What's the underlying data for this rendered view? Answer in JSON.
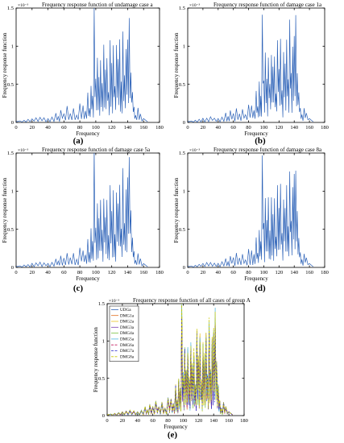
{
  "chart_data": [
    {
      "type": "line",
      "panel_label": "(a)",
      "title": "Frequency response function of undamage case a",
      "xlabel": "Frequency",
      "ylabel": "Frequency response function",
      "xlim": [
        0,
        180
      ],
      "ylim": [
        0,
        1.5
      ],
      "xticks": [
        "0",
        "20",
        "40",
        "60",
        "80",
        "100",
        "120",
        "140",
        "160",
        "180"
      ],
      "yticks": [
        "0",
        "0.5",
        "1",
        "1.5"
      ],
      "exponent": "×10⁻³",
      "color": "#2e63b8"
    },
    {
      "type": "line",
      "panel_label": "(b)",
      "title": "Frequency response function of damage case 1a",
      "xlabel": "Frequency",
      "ylabel": "Frequency response function",
      "xlim": [
        0,
        180
      ],
      "ylim": [
        0,
        1.5
      ],
      "xticks": [
        "0",
        "20",
        "40",
        "60",
        "80",
        "100",
        "120",
        "140",
        "160",
        "180"
      ],
      "yticks": [
        "0",
        "0.5",
        "1",
        "1.5"
      ],
      "exponent": "×10⁻³",
      "color": "#2e63b8"
    },
    {
      "type": "line",
      "panel_label": "(c)",
      "title": "Frequency response function of damage case 5a",
      "xlabel": "Frequency",
      "ylabel": "Frequency response function",
      "xlim": [
        0,
        180
      ],
      "ylim": [
        0,
        1.5
      ],
      "xticks": [
        "0",
        "20",
        "40",
        "60",
        "80",
        "100",
        "120",
        "140",
        "160",
        "180"
      ],
      "yticks": [
        "0",
        "0.5",
        "1",
        "1.5"
      ],
      "exponent": "×10⁻³",
      "color": "#2e63b8"
    },
    {
      "type": "line",
      "panel_label": "(d)",
      "title": "Frequency response function of damage case 8a",
      "xlabel": "Frequency",
      "ylabel": "Frequency response function",
      "xlim": [
        0,
        180
      ],
      "ylim": [
        0,
        1.5
      ],
      "xticks": [
        "0",
        "20",
        "40",
        "60",
        "80",
        "100",
        "120",
        "140",
        "160",
        "180"
      ],
      "yticks": [
        "0",
        "0.5",
        "1",
        "1.5"
      ],
      "exponent": "×10⁻³",
      "color": "#2e63b8"
    },
    {
      "type": "line",
      "panel_label": "(e)",
      "title": "Frequency response function of all cases of group A",
      "xlabel": "Frequency",
      "ylabel": "Frequency response function",
      "xlim": [
        0,
        180
      ],
      "ylim": [
        0,
        1.5
      ],
      "xticks": [
        "0",
        "20",
        "40",
        "60",
        "80",
        "100",
        "120",
        "140",
        "160",
        "180"
      ],
      "yticks": [
        "0",
        "0.5",
        "1",
        "1.5"
      ],
      "exponent": "×10⁻³",
      "legend_position": "top-left",
      "series": [
        {
          "name": "UDGa",
          "color": "#2e63b8",
          "dash": ""
        },
        {
          "name": "DMG1a",
          "color": "#e06c1a",
          "dash": ""
        },
        {
          "name": "DMG2a",
          "color": "#e8c21e",
          "dash": ""
        },
        {
          "name": "DMG3a",
          "color": "#7b3fb0",
          "dash": ""
        },
        {
          "name": "DMG4a",
          "color": "#7ac142",
          "dash": ""
        },
        {
          "name": "DMG5a",
          "color": "#4fb6e0",
          "dash": ""
        },
        {
          "name": "DMG6a",
          "color": "#c2185b",
          "dash": "3,1.5"
        },
        {
          "name": "DMG7a",
          "color": "#2323c8",
          "dash": "3,1.5"
        },
        {
          "name": "DMG8a",
          "color": "#c8c800",
          "dash": "3,1.5"
        }
      ]
    }
  ],
  "spectrum_peaks": [
    [
      5,
      0.02
    ],
    [
      10,
      0.03
    ],
    [
      15,
      0.04
    ],
    [
      20,
      0.05
    ],
    [
      25,
      0.06
    ],
    [
      30,
      0.07
    ],
    [
      35,
      0.06
    ],
    [
      40,
      0.05
    ],
    [
      45,
      0.07
    ],
    [
      50,
      0.12
    ],
    [
      53,
      0.08
    ],
    [
      56,
      0.15
    ],
    [
      60,
      0.12
    ],
    [
      64,
      0.2
    ],
    [
      68,
      0.12
    ],
    [
      72,
      0.18
    ],
    [
      76,
      0.1
    ],
    [
      80,
      0.25
    ],
    [
      84,
      0.22
    ],
    [
      87,
      0.16
    ],
    [
      90,
      0.4
    ],
    [
      92,
      0.2
    ],
    [
      94,
      0.5
    ],
    [
      96,
      0.35
    ],
    [
      98,
      1.48
    ],
    [
      100,
      0.55
    ],
    [
      102,
      0.9
    ],
    [
      104,
      0.6
    ],
    [
      106,
      0.88
    ],
    [
      108,
      0.5
    ],
    [
      110,
      0.95
    ],
    [
      112,
      0.7
    ],
    [
      114,
      0.85
    ],
    [
      116,
      0.4
    ],
    [
      118,
      1.12
    ],
    [
      120,
      0.75
    ],
    [
      122,
      1.05
    ],
    [
      124,
      0.45
    ],
    [
      126,
      0.95
    ],
    [
      128,
      0.8
    ],
    [
      130,
      1.08
    ],
    [
      132,
      0.55
    ],
    [
      134,
      1.25
    ],
    [
      136,
      0.6
    ],
    [
      138,
      1.0
    ],
    [
      140,
      1.18
    ],
    [
      142,
      1.35
    ],
    [
      144,
      0.7
    ],
    [
      146,
      0.4
    ],
    [
      148,
      0.2
    ],
    [
      150,
      0.1
    ],
    [
      153,
      0.18
    ],
    [
      156,
      0.12
    ],
    [
      160,
      0.05
    ]
  ]
}
